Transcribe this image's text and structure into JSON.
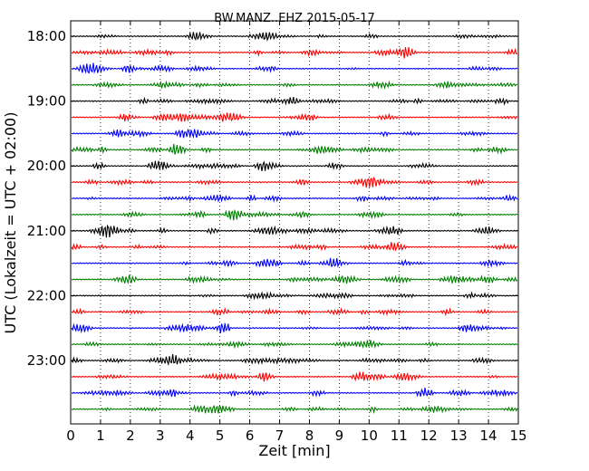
{
  "chart_data": {
    "type": "line",
    "title": "BW.MANZ..EHZ 2015-05-17",
    "xlabel": "Zeit  [min]",
    "ylabel": "UTC (Lokalzeit = UTC + 02:00)",
    "xlim": [
      0,
      15
    ],
    "xticks": [
      "0",
      "1",
      "2",
      "3",
      "4",
      "5",
      "6",
      "7",
      "8",
      "9",
      "10",
      "11",
      "12",
      "13",
      "14",
      "15"
    ],
    "yticks": [
      {
        "label": "18:00",
        "row": 0
      },
      {
        "label": "19:00",
        "row": 4
      },
      {
        "label": "20:00",
        "row": 8
      },
      {
        "label": "21:00",
        "row": 12
      },
      {
        "label": "22:00",
        "row": 16
      },
      {
        "label": "23:00",
        "row": 20
      }
    ],
    "rows": 24,
    "row_colors": [
      "#000000",
      "#ff0000",
      "#0000ff",
      "#007f00"
    ],
    "vertical_grid": "dotted"
  }
}
